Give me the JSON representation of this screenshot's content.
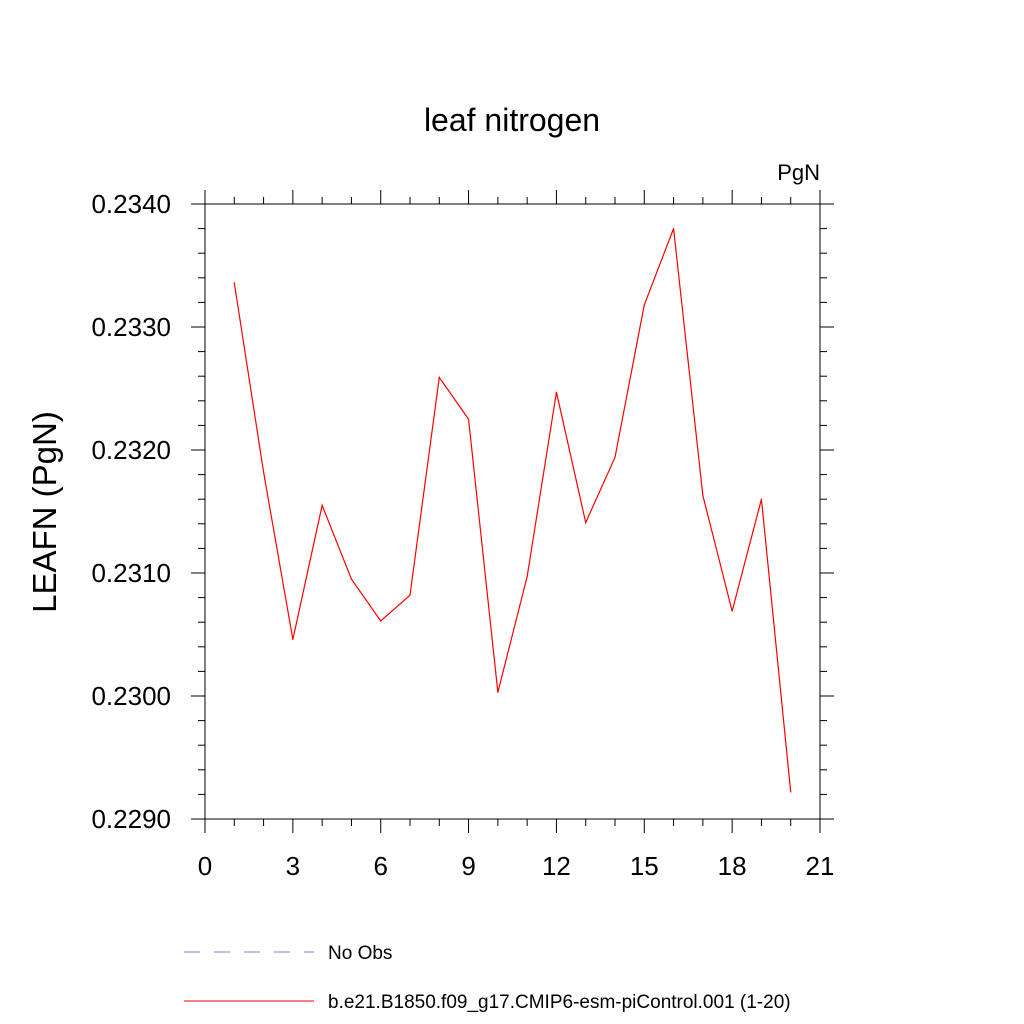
{
  "chart_data": {
    "type": "line",
    "title": "leaf nitrogen",
    "units": "PgN",
    "xlabel": "",
    "ylabel": "LEAFN  (PgN)",
    "xlim": [
      0,
      21
    ],
    "ylim": [
      0.229,
      0.234
    ],
    "x_ticks": [
      "0",
      "3",
      "6",
      "9",
      "12",
      "15",
      "18",
      "21"
    ],
    "y_ticks": [
      "0.2290",
      "0.2300",
      "0.2310",
      "0.2320",
      "0.2330",
      "0.2340"
    ],
    "grid": false,
    "legend_position": "bottom",
    "series": [
      {
        "name": "b.e21.B1850.f09_g17.CMIP6-esm-piControl.001 (1-20)",
        "color": "#ff0000",
        "x": [
          1,
          2,
          3,
          4,
          5,
          6,
          7,
          8,
          9,
          10,
          11,
          12,
          13,
          14,
          15,
          16,
          17,
          18,
          19,
          20
        ],
        "values": [
          0.23336,
          0.23182,
          0.23046,
          0.23155,
          0.23095,
          0.23061,
          0.23082,
          0.23259,
          0.23225,
          0.23003,
          0.23097,
          0.23247,
          0.23141,
          0.23194,
          0.23318,
          0.2338,
          0.23163,
          0.23069,
          0.2316,
          0.22922
        ]
      }
    ],
    "legend": [
      {
        "label": "No Obs",
        "color": "#8080c0",
        "style": "dashed"
      },
      {
        "label": "b.e21.B1850.f09_g17.CMIP6-esm-piControl.001 (1-20)",
        "color": "#ff0000",
        "style": "solid"
      }
    ]
  }
}
